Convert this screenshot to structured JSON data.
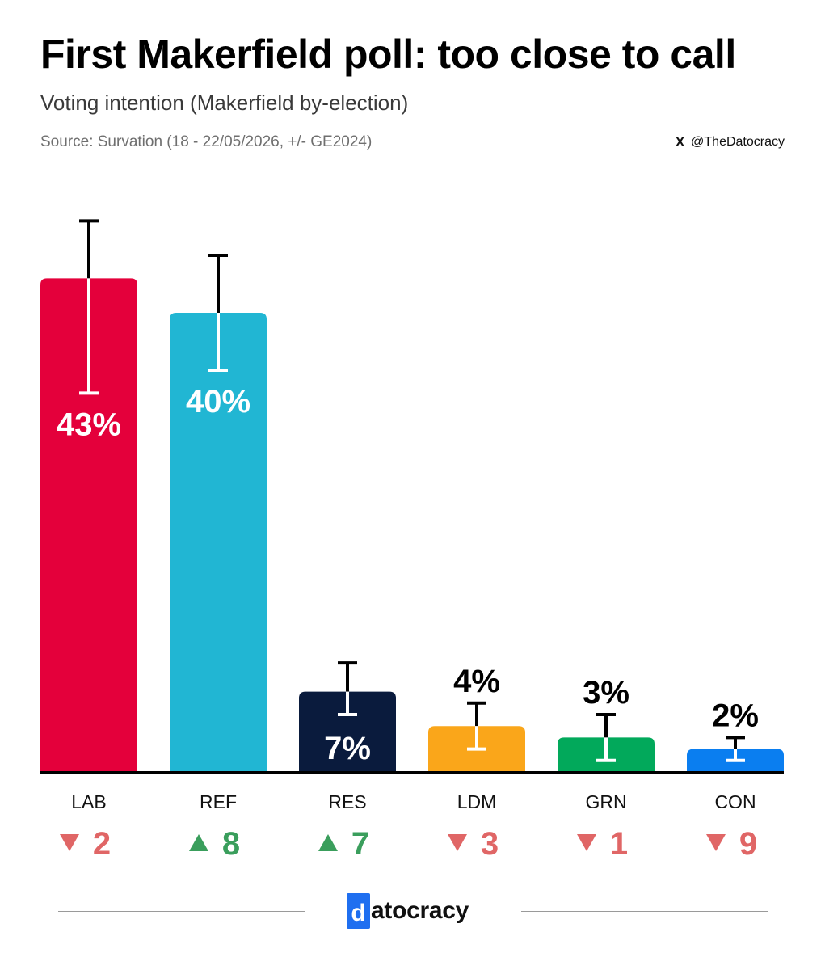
{
  "title": "First Makerfield poll: too close to call",
  "subtitle": "Voting intention (Makerfield by-election)",
  "source": "Source: Survation (18 - 22/05/2026, +/- GE2024)",
  "handle": {
    "icon": "x-logo-icon",
    "icon_glyph": "X",
    "text": "@TheDatocracy"
  },
  "logo": {
    "first_letter": "d",
    "rest": "atocracy"
  },
  "colors": {
    "up": "#3a9e5c",
    "down": "#e06666",
    "axis": "#000000"
  },
  "chart_data": {
    "type": "bar",
    "ylim": [
      0,
      50
    ],
    "bars": [
      {
        "category": "LAB",
        "value": 43,
        "label": "43%",
        "color": "#e4003b",
        "err_low": 33,
        "err_high": 48,
        "change": 2,
        "direction": "down"
      },
      {
        "category": "REF",
        "value": 40,
        "label": "40%",
        "color": "#21b6d3",
        "err_low": 35,
        "err_high": 45,
        "change": 8,
        "direction": "up"
      },
      {
        "category": "RES",
        "value": 7,
        "label": "7%",
        "color": "#0a1b3d",
        "err_low": 5,
        "err_high": 9.5,
        "change": 7,
        "direction": "up"
      },
      {
        "category": "LDM",
        "value": 4,
        "label": "4%",
        "color": "#faa61a",
        "err_low": 2,
        "err_high": 6,
        "change": 3,
        "direction": "down"
      },
      {
        "category": "GRN",
        "value": 3,
        "label": "3%",
        "color": "#02a95b",
        "err_low": 1,
        "err_high": 5,
        "change": 1,
        "direction": "down"
      },
      {
        "category": "CON",
        "value": 2,
        "label": "2%",
        "color": "#0a7ef0",
        "err_low": 1,
        "err_high": 3,
        "change": 9,
        "direction": "down"
      }
    ]
  }
}
